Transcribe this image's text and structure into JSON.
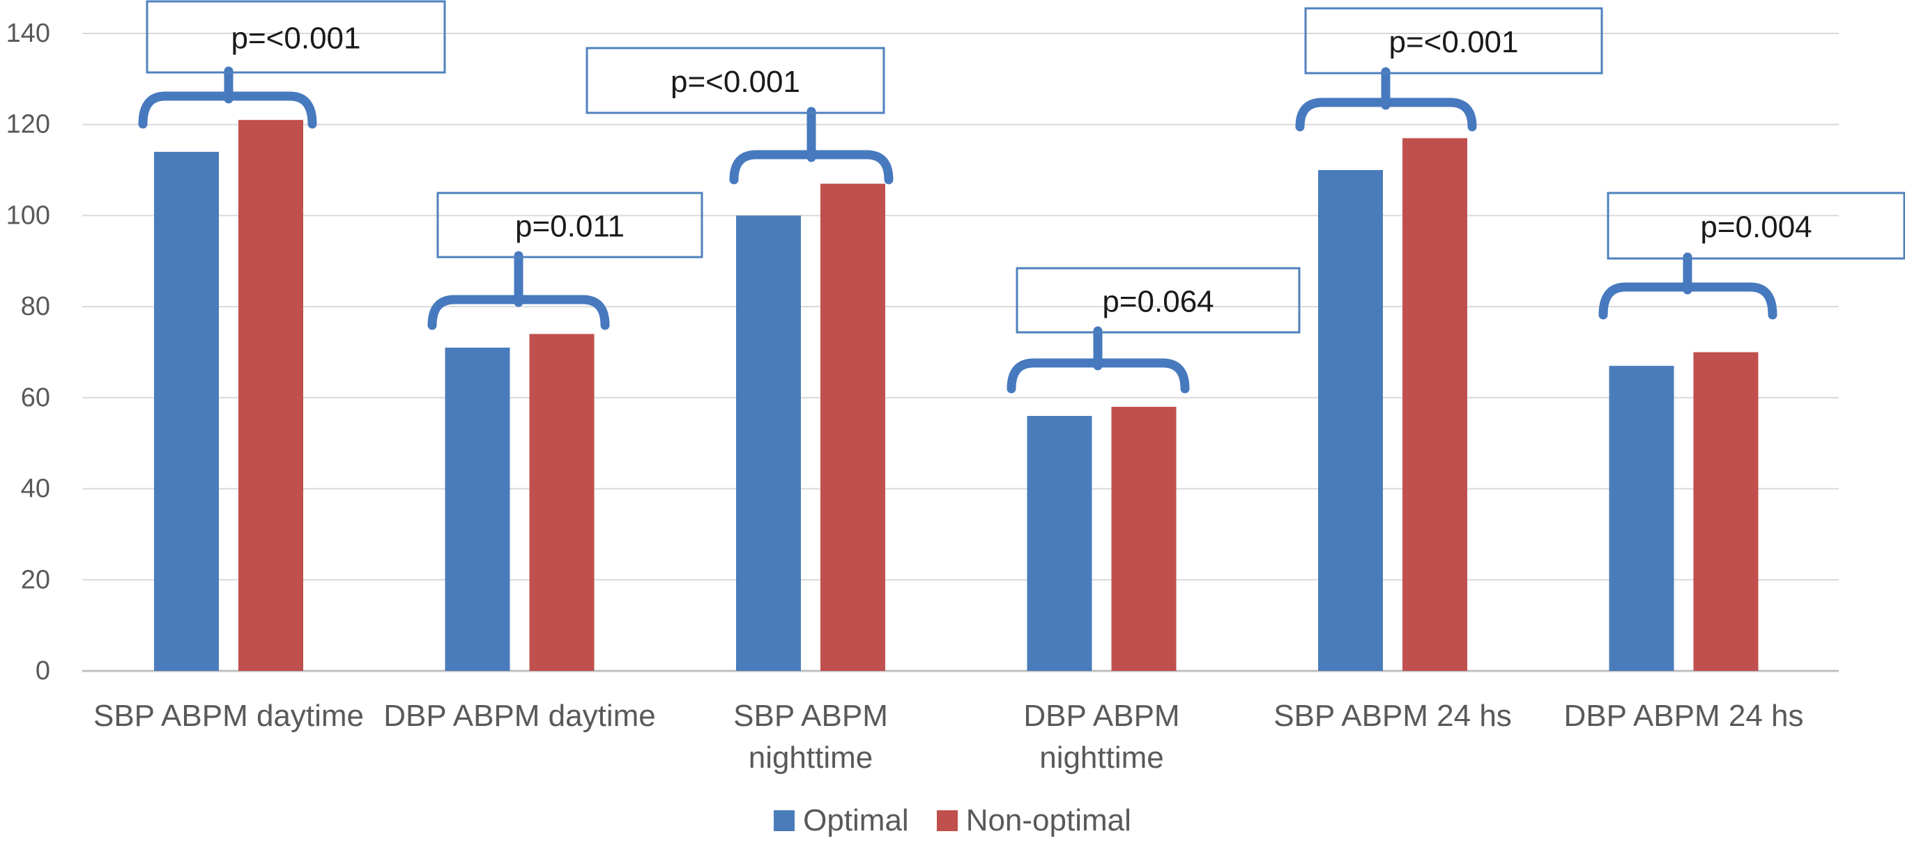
{
  "chart_data": {
    "type": "bar",
    "title": "",
    "xlabel": "",
    "ylabel": "",
    "categories": [
      "SBP ABPM daytime",
      "DBP ABPM daytime",
      "SBP ABPM\nnighttime",
      "DBP ABPM\nnighttime",
      "SBP ABPM 24 hs",
      "DBP ABPM 24 hs"
    ],
    "series": [
      {
        "name": "Optimal",
        "color": "#4a7cbc",
        "values": [
          114,
          71,
          100,
          56,
          110,
          67
        ]
      },
      {
        "name": "Non-optimal",
        "color": "#c0504d",
        "values": [
          121,
          74,
          107,
          58,
          117,
          70
        ]
      }
    ],
    "p_values": [
      "p=<0.001",
      "p=0.011",
      "p=<0.001",
      "p=0.064",
      "p=<0.001",
      "p=0.004"
    ],
    "ylim": [
      0,
      140
    ],
    "yticks": [
      0,
      20,
      40,
      60,
      80,
      100,
      120,
      140
    ],
    "grid": true,
    "legend_position": "bottom"
  },
  "colors": {
    "annotation_box_border": "#4f81bd",
    "brace": "#4779be",
    "gridline": "#d9d9d9",
    "axis_line": "#bfbfbf",
    "tick_text": "#595959",
    "p_text": "#1a1a1a"
  }
}
